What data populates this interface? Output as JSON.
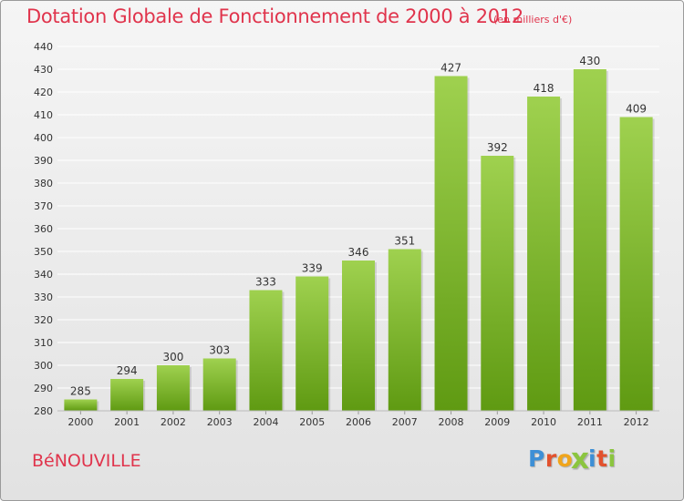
{
  "title": "Dotation Globale de Fonctionnement de 2000 à 2012",
  "subtitle": "(en milliers d'€)",
  "city": "BéNOUVILLE",
  "logo": {
    "letters": [
      "P",
      "r",
      "o",
      "x",
      "i",
      "t",
      "i"
    ],
    "colors": [
      "#3d8fd6",
      "#e2522e",
      "#f0a51c",
      "#8bc53f",
      "#3d8fd6",
      "#e2522e",
      "#8bc53f"
    ]
  },
  "colors": {
    "accent": "#e0344c",
    "bar_top": "#9fd14f",
    "bar_bottom": "#5f9a12",
    "grid": "#ffffff",
    "axis_text": "#333333"
  },
  "chart_data": {
    "type": "bar",
    "categories": [
      "2000",
      "2001",
      "2002",
      "2003",
      "2004",
      "2005",
      "2006",
      "2007",
      "2008",
      "2009",
      "2010",
      "2011",
      "2012"
    ],
    "values": [
      285,
      294,
      300,
      303,
      333,
      339,
      346,
      351,
      427,
      392,
      418,
      430,
      409
    ],
    "ylim": [
      280,
      440
    ],
    "yticks": [
      280,
      290,
      300,
      310,
      320,
      330,
      340,
      350,
      360,
      370,
      380,
      390,
      400,
      410,
      420,
      430,
      440
    ],
    "grid": true,
    "data_labels": true
  }
}
